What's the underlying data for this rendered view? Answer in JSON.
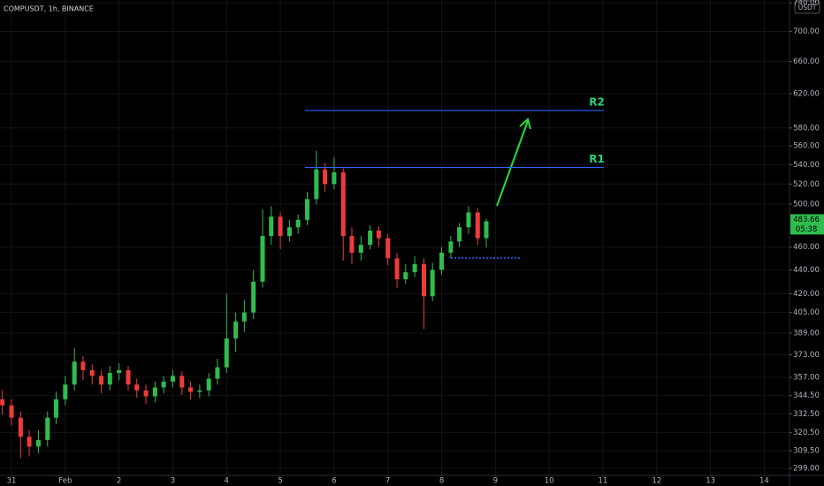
{
  "chart_data": {
    "type": "candlestick",
    "title": "COMPUSDT, 1h, BINANCE",
    "currency": "USDT",
    "countdown": "05:38",
    "x": [
      -0.17,
      0,
      0.17,
      0.33,
      0.5,
      0.67,
      0.83,
      1,
      1.17,
      1.33,
      1.5,
      1.67,
      1.83,
      2,
      2.17,
      2.33,
      2.5,
      2.67,
      2.83,
      3,
      3.17,
      3.33,
      3.5,
      3.67,
      3.83,
      4,
      4.17,
      4.33,
      4.5,
      4.67,
      4.83,
      5,
      5.17,
      5.33,
      5.5,
      5.67,
      5.83,
      6,
      6.17,
      6.33,
      6.5,
      6.67,
      6.83,
      7,
      7.17,
      7.33,
      7.5,
      7.67,
      7.83,
      8,
      8.17,
      8.33,
      8.5,
      8.67,
      8.83
    ],
    "open": [
      342,
      338,
      330,
      318,
      312,
      316,
      330,
      342,
      352,
      368,
      362,
      358,
      352,
      360,
      362,
      352,
      348,
      344,
      350,
      354,
      358,
      350,
      347,
      348,
      356,
      364,
      385,
      398,
      405,
      430,
      470,
      488,
      470,
      478,
      485,
      505,
      535,
      520,
      532,
      470,
      455,
      462,
      475,
      468,
      450,
      432,
      438,
      445,
      418,
      440,
      455,
      465,
      478,
      492,
      468
    ],
    "high": [
      348,
      342,
      334,
      322,
      322,
      334,
      347,
      358,
      378,
      372,
      366,
      362,
      365,
      367,
      365,
      356,
      352,
      354,
      358,
      362,
      361,
      354,
      352,
      360,
      370,
      420,
      405,
      415,
      440,
      495,
      498,
      492,
      485,
      490,
      512,
      555,
      542,
      548,
      536,
      478,
      470,
      480,
      479,
      472,
      455,
      445,
      452,
      450,
      446,
      460,
      470,
      482,
      498,
      496,
      486
    ],
    "low": [
      332,
      325,
      305,
      306,
      308,
      312,
      326,
      338,
      348,
      355,
      352,
      346,
      348,
      355,
      348,
      343,
      339,
      340,
      346,
      350,
      345,
      342,
      343,
      344,
      352,
      360,
      375,
      390,
      400,
      425,
      462,
      458,
      465,
      472,
      480,
      500,
      512,
      515,
      448,
      445,
      448,
      458,
      460,
      444,
      425,
      428,
      434,
      392,
      414,
      436,
      450,
      460,
      472,
      462,
      460
    ],
    "close": [
      338,
      330,
      318,
      312,
      316,
      330,
      342,
      352,
      368,
      362,
      358,
      352,
      360,
      362,
      352,
      348,
      344,
      350,
      354,
      358,
      350,
      347,
      348,
      356,
      364,
      385,
      398,
      405,
      430,
      470,
      488,
      470,
      478,
      485,
      505,
      535,
      520,
      532,
      470,
      455,
      462,
      475,
      468,
      450,
      432,
      438,
      445,
      418,
      440,
      455,
      465,
      478,
      492,
      468,
      483.66
    ],
    "up_color": "#2ebd4e",
    "down_color": "#ef3b3b",
    "annotations": [
      {
        "label": "R1",
        "value": 537
      },
      {
        "label": "R2",
        "value": 600
      }
    ],
    "line_color": "#2962ff",
    "label_color": "#26d07c",
    "xlim": [
      -0.214,
      14.47
    ],
    "xticks": [
      {
        "value": 0,
        "label": "31"
      },
      {
        "value": 1,
        "label": "Feb"
      },
      2,
      3,
      4,
      5,
      6,
      7,
      8,
      9,
      10,
      11,
      12,
      13,
      14
    ],
    "log_y": true,
    "ylim": [
      298,
      744
    ],
    "yticks": [
      {
        "value": 299,
        "label": "299.00"
      },
      {
        "value": 309.5,
        "label": "309.50"
      },
      {
        "value": 320.5,
        "label": "320.50"
      },
      {
        "value": 332.5,
        "label": "332.50"
      },
      {
        "value": 344.5,
        "label": "344.50"
      },
      {
        "value": 357,
        "label": "357.00"
      },
      {
        "value": 373,
        "label": "373.00"
      },
      {
        "value": 389,
        "label": "389.00"
      },
      {
        "value": 405,
        "label": "405.00"
      },
      {
        "value": 420,
        "label": "420.00"
      },
      {
        "value": 440,
        "label": "440.00"
      },
      {
        "value": 460,
        "label": "460.00"
      },
      {
        "value": 500,
        "label": "500.00"
      },
      {
        "value": 520,
        "label": "520.00"
      },
      {
        "value": 540,
        "label": "540.00"
      },
      {
        "value": 560,
        "label": "560.00"
      },
      {
        "value": 580,
        "label": "580.00"
      },
      {
        "value": 620,
        "label": "620.00"
      },
      {
        "value": 660,
        "label": "660.00"
      },
      {
        "value": 700,
        "label": "700.00"
      },
      {
        "value": 740,
        "label": "740.00"
      }
    ],
    "grid": true
  }
}
